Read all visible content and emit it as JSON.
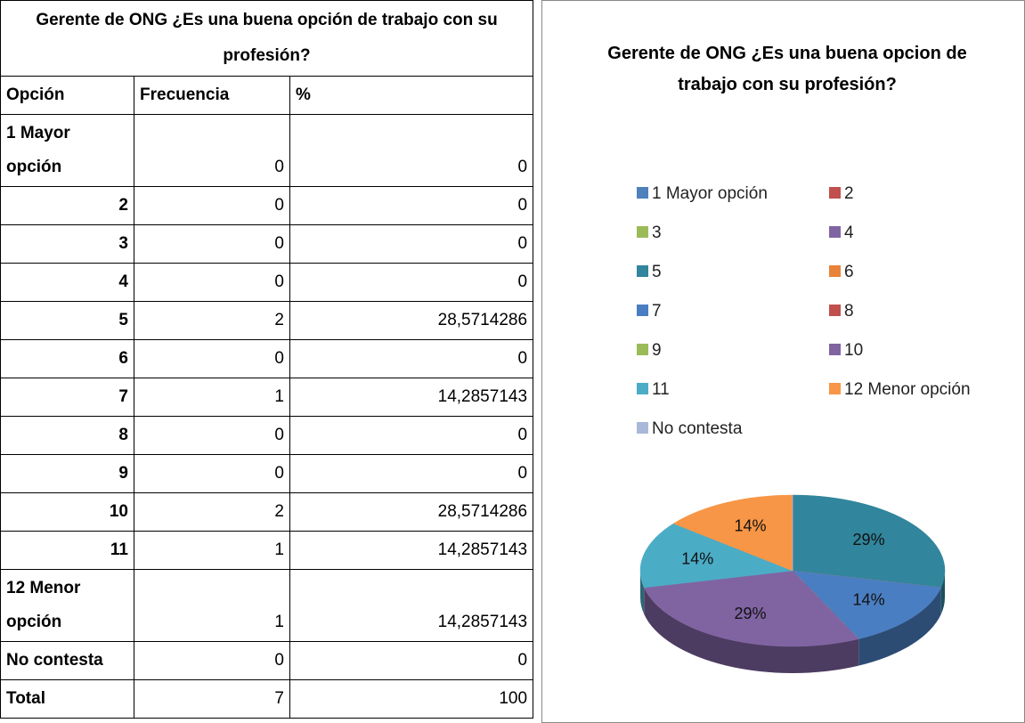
{
  "table": {
    "title": "Gerente de ONG ¿Es una buena opción de trabajo con su profesión?",
    "header": [
      "Opción",
      "Frecuencia",
      "%"
    ],
    "rows": [
      [
        "1 Mayor opción",
        0,
        0
      ],
      [
        "2",
        0,
        0
      ],
      [
        "3",
        0,
        0
      ],
      [
        "4",
        0,
        0
      ],
      [
        "5",
        2,
        "28,5714286"
      ],
      [
        "6",
        0,
        0
      ],
      [
        "7",
        1,
        "14,2857143"
      ],
      [
        "8",
        0,
        0
      ],
      [
        "9",
        0,
        0
      ],
      [
        "10",
        2,
        "28,5714286"
      ],
      [
        "11",
        1,
        "14,2857143"
      ],
      [
        "12 Menor opción",
        1,
        "14,2857143"
      ],
      [
        "No contesta",
        0,
        0
      ],
      [
        "Total",
        7,
        100
      ]
    ]
  },
  "chart_data": {
    "type": "pie",
    "title": "Gerente de ONG ¿Es una buena opcion de trabajo con su profesión?",
    "categories": [
      "1 Mayor opción",
      "2",
      "3",
      "4",
      "5",
      "6",
      "7",
      "8",
      "9",
      "10",
      "11",
      "12 Menor opción",
      "No contesta"
    ],
    "values": [
      0,
      0,
      0,
      0,
      28.5714286,
      0,
      14.2857143,
      0,
      0,
      28.5714286,
      14.2857143,
      14.2857143,
      0
    ],
    "value_labels": [
      null,
      null,
      null,
      null,
      "29%",
      null,
      "14%",
      null,
      null,
      "29%",
      "14%",
      "14%",
      null
    ],
    "colors": [
      "#4f81bd",
      "#c0504d",
      "#9bbb59",
      "#8064a2",
      "#31859c",
      "#e8833a",
      "#4a7ec2",
      "#c0504d",
      "#9bbb59",
      "#8064a2",
      "#4bacc6",
      "#f79646",
      "#a9b8d8"
    ]
  }
}
